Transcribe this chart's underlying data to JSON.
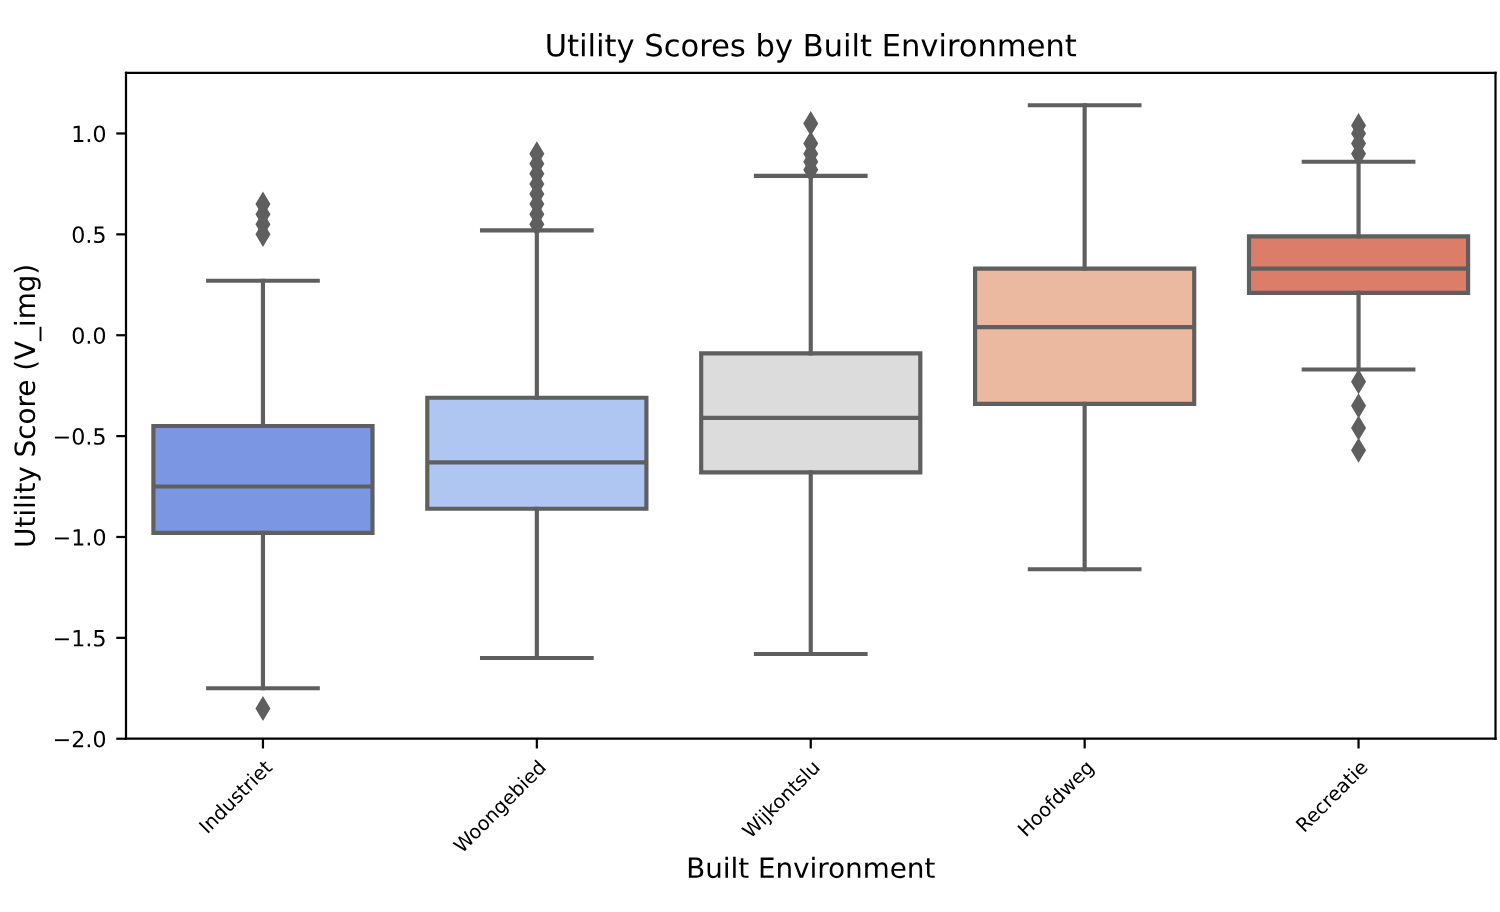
{
  "chart_data": {
    "type": "box",
    "title": "Utility Scores by Built Environment",
    "xlabel": "Built Environment",
    "ylabel": "Utility Score (V_img)",
    "categories": [
      "Industriet",
      "Woongebied",
      "Wijkontslu",
      "Hoofdweg",
      "Recreatie"
    ],
    "colors": [
      "#7b96e3",
      "#b0c6f2",
      "#dcdcdc",
      "#ebb8a0",
      "#db7d68"
    ],
    "boxes": [
      {
        "low": -1.75,
        "q1": -0.98,
        "median": -0.75,
        "q3": -0.45,
        "high": 0.27,
        "outliers": [
          0.5,
          0.55,
          0.6,
          0.65,
          -1.85
        ]
      },
      {
        "low": -1.6,
        "q1": -0.86,
        "median": -0.63,
        "q3": -0.31,
        "high": 0.52,
        "outliers": [
          0.55,
          0.6,
          0.65,
          0.7,
          0.75,
          0.8,
          0.85,
          0.9
        ]
      },
      {
        "low": -1.58,
        "q1": -0.68,
        "median": -0.41,
        "q3": -0.09,
        "high": 0.79,
        "outliers": [
          0.82,
          0.86,
          0.9,
          0.95,
          1.05
        ]
      },
      {
        "low": -1.16,
        "q1": -0.34,
        "median": 0.04,
        "q3": 0.33,
        "high": 1.14
      },
      {
        "low": -0.17,
        "q1": 0.21,
        "median": 0.33,
        "q3": 0.49,
        "high": 0.86,
        "outliers": [
          0.9,
          0.95,
          1.0,
          1.04,
          -0.23,
          -0.35,
          -0.46,
          -0.57
        ]
      }
    ],
    "ylim": [
      -2.0,
      1.3
    ],
    "yticks": [
      {
        "value": -2.0,
        "label": "−2.0"
      },
      {
        "value": -1.5,
        "label": "−1.5"
      },
      {
        "value": -1.0,
        "label": "−1.0"
      },
      {
        "value": -0.5,
        "label": "−0.5"
      },
      {
        "value": 0.0,
        "label": "0.0"
      },
      {
        "value": 0.5,
        "label": "0.5"
      },
      {
        "value": 1.0,
        "label": "1.0"
      }
    ],
    "grid": false,
    "legend": false
  }
}
